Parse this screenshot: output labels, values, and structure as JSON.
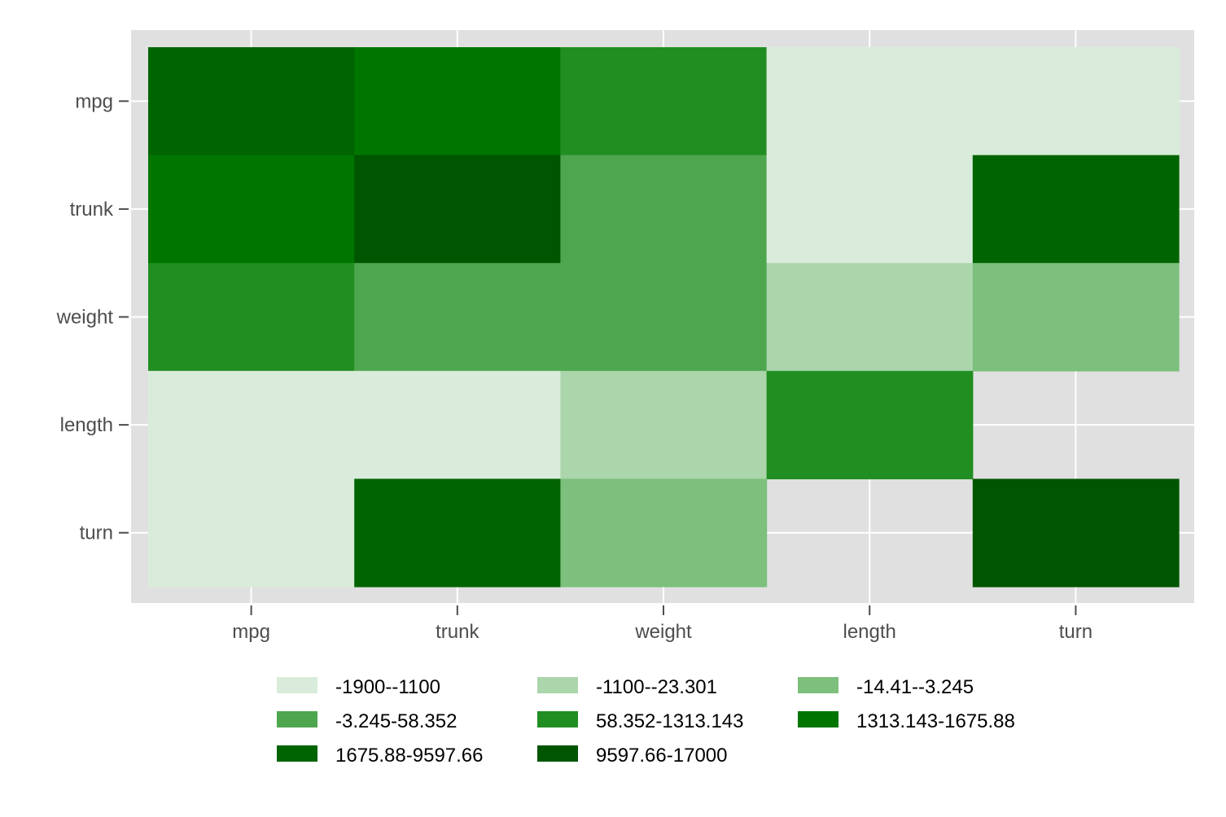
{
  "chart_data": {
    "type": "heatmap",
    "title": "",
    "xlabel": "",
    "ylabel": "",
    "x": [
      "mpg",
      "trunk",
      "weight",
      "length",
      "turn"
    ],
    "y": [
      "mpg",
      "trunk",
      "weight",
      "length",
      "turn"
    ],
    "grid": true,
    "legend_position": "bottom",
    "bins": [
      {
        "label": "-1900--1100",
        "color": "#d9ecdb"
      },
      {
        "label": "-1100--23.301",
        "color": "#abd5ab"
      },
      {
        "label": "-14.41--3.245",
        "color": "#7dbf7d"
      },
      {
        "label": "-3.245-58.352",
        "color": "#4ea64e"
      },
      {
        "label": "58.352-1313.143",
        "color": "#218e21"
      },
      {
        "label": "1313.143-1675.88",
        "color": "#007500"
      },
      {
        "label": "1675.88-9597.66",
        "color": "#006400"
      },
      {
        "label": "9597.66-17000",
        "color": "#005500"
      }
    ],
    "cells": [
      [
        6,
        5,
        4,
        0,
        0
      ],
      [
        5,
        7,
        3,
        0,
        6
      ],
      [
        4,
        3,
        3,
        1,
        2
      ],
      [
        0,
        0,
        1,
        4,
        null
      ],
      [
        0,
        6,
        2,
        null,
        7
      ]
    ]
  }
}
